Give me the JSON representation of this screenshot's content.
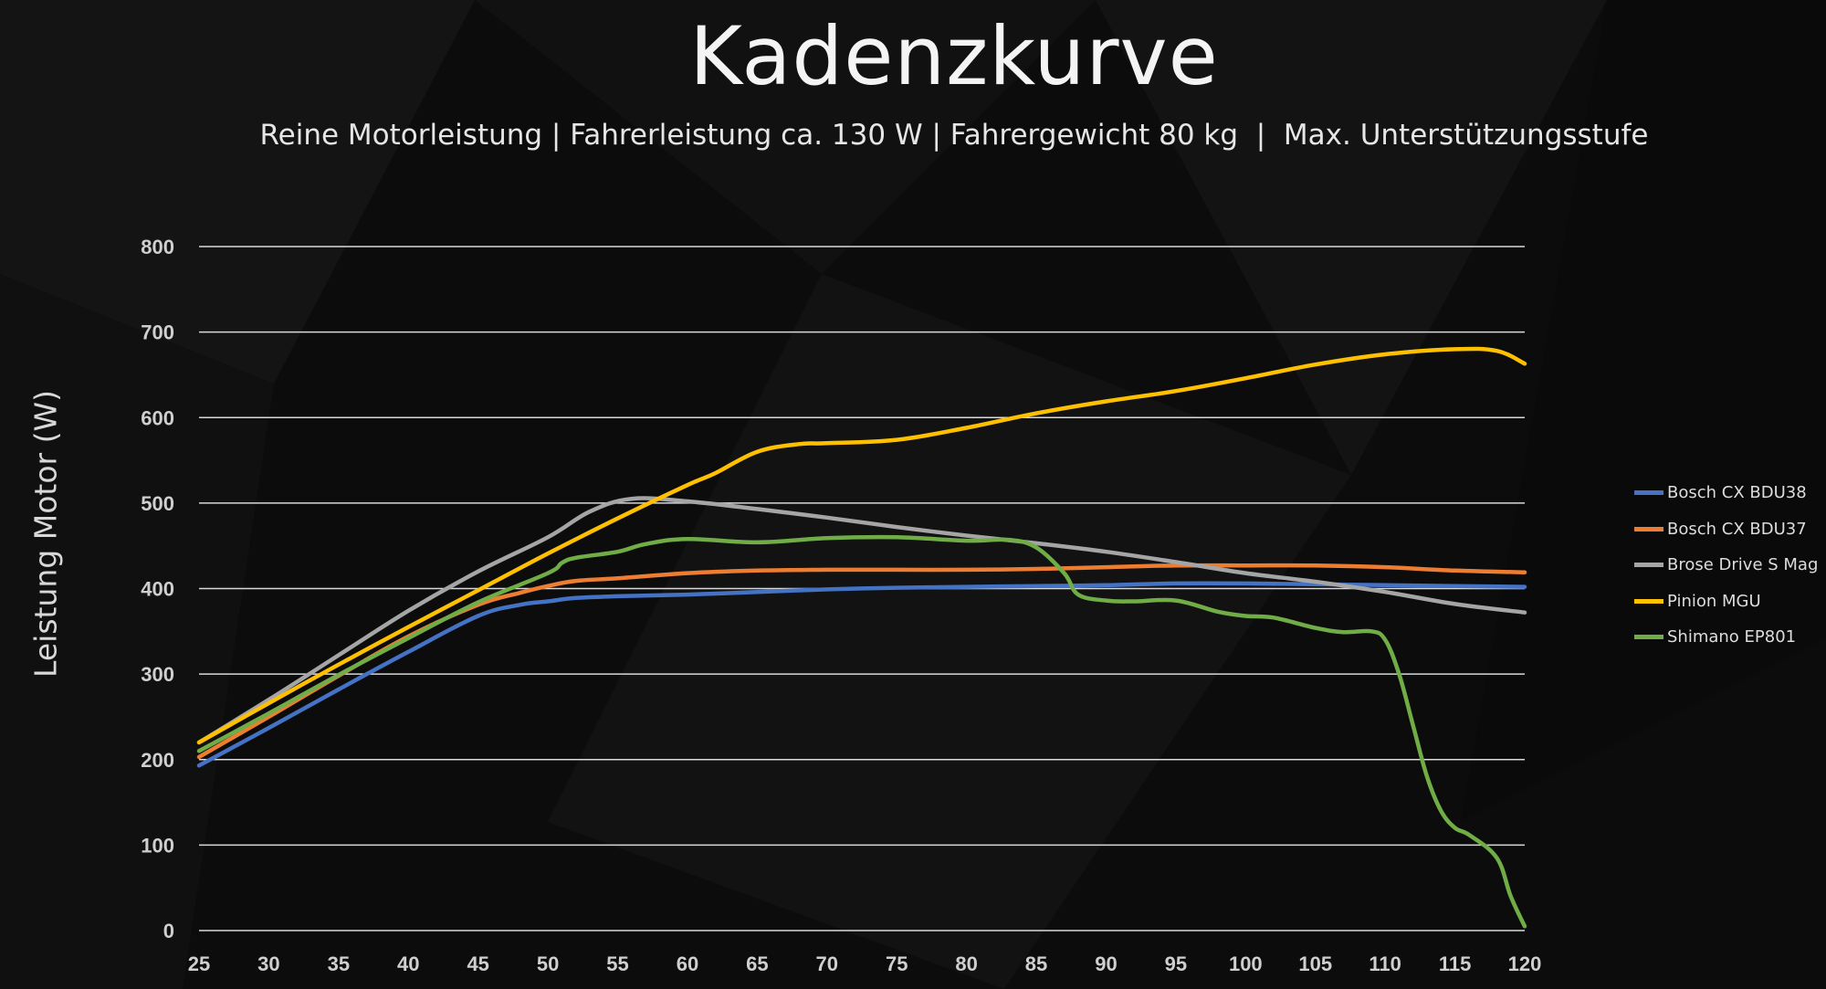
{
  "chart_data": {
    "type": "line",
    "title": "Kadenzkurve",
    "subtitle": "Reine Motorleistung | Fahrerleistung ca. 130 W | Fahrergewicht 80 kg  |  Max. Unterstützungsstufe",
    "xlabel": "",
    "ylabel": "Leistung Motor (W)",
    "xlim": [
      25,
      120
    ],
    "ylim": [
      0,
      800
    ],
    "xticks": [
      25,
      30,
      35,
      40,
      45,
      50,
      55,
      60,
      65,
      70,
      75,
      80,
      85,
      90,
      95,
      100,
      105,
      110,
      115,
      120
    ],
    "yticks": [
      0,
      100,
      200,
      300,
      400,
      500,
      600,
      700,
      800
    ],
    "grid": true,
    "legend_position": "right",
    "series": [
      {
        "name": "Bosch CX BDU38",
        "color": "#4472c4",
        "x": [
          25,
          30,
          35,
          40,
          45,
          48,
          50,
          52,
          55,
          60,
          65,
          70,
          75,
          80,
          85,
          90,
          95,
          100,
          105,
          110,
          115,
          120
        ],
        "y": [
          193,
          237,
          282,
          326,
          368,
          381,
          385,
          389,
          391,
          393,
          396,
          399,
          401,
          402,
          403,
          404,
          406,
          406,
          405,
          404,
          403,
          402
        ]
      },
      {
        "name": "Bosch CX BDU37",
        "color": "#ed7d31",
        "x": [
          25,
          30,
          35,
          40,
          45,
          48,
          50,
          52,
          55,
          60,
          65,
          70,
          75,
          80,
          85,
          90,
          95,
          100,
          105,
          110,
          115,
          120
        ],
        "y": [
          203,
          250,
          298,
          344,
          381,
          395,
          403,
          409,
          412,
          418,
          421,
          422,
          422,
          422,
          423,
          425,
          427,
          427,
          427,
          425,
          421,
          419
        ]
      },
      {
        "name": "Brose Drive S Mag",
        "color": "#a5a5a5",
        "x": [
          25,
          30,
          35,
          40,
          45,
          50,
          53,
          56,
          60,
          65,
          70,
          75,
          80,
          85,
          90,
          95,
          100,
          105,
          110,
          115,
          120
        ],
        "y": [
          220,
          270,
          322,
          374,
          420,
          460,
          490,
          505,
          502,
          493,
          483,
          472,
          462,
          453,
          443,
          431,
          418,
          408,
          396,
          382,
          372
        ]
      },
      {
        "name": "Pinion MGU",
        "color": "#ffc000",
        "x": [
          25,
          30,
          35,
          40,
          45,
          50,
          55,
          60,
          62,
          65,
          68,
          70,
          75,
          80,
          85,
          90,
          95,
          100,
          105,
          110,
          115,
          118,
          120
        ],
        "y": [
          220,
          266,
          311,
          355,
          398,
          441,
          482,
          521,
          535,
          560,
          569,
          570,
          574,
          588,
          605,
          619,
          631,
          646,
          662,
          674,
          680,
          678,
          663
        ]
      },
      {
        "name": "Shimano EP801",
        "color": "#70ad47",
        "x": [
          25,
          30,
          35,
          40,
          45,
          50,
          51,
          52,
          55,
          57,
          60,
          65,
          70,
          75,
          80,
          83,
          85,
          87,
          88,
          90,
          92,
          95,
          98,
          100,
          102,
          105,
          107,
          109,
          110,
          111,
          112,
          113,
          114,
          115,
          116,
          118,
          119,
          120
        ],
        "y": [
          210,
          254,
          299,
          342,
          384,
          418,
          430,
          436,
          443,
          452,
          458,
          454,
          459,
          460,
          456,
          457,
          448,
          418,
          393,
          386,
          385,
          386,
          373,
          368,
          366,
          354,
          349,
          350,
          340,
          300,
          240,
          180,
          140,
          120,
          112,
          85,
          40,
          5
        ]
      }
    ]
  }
}
